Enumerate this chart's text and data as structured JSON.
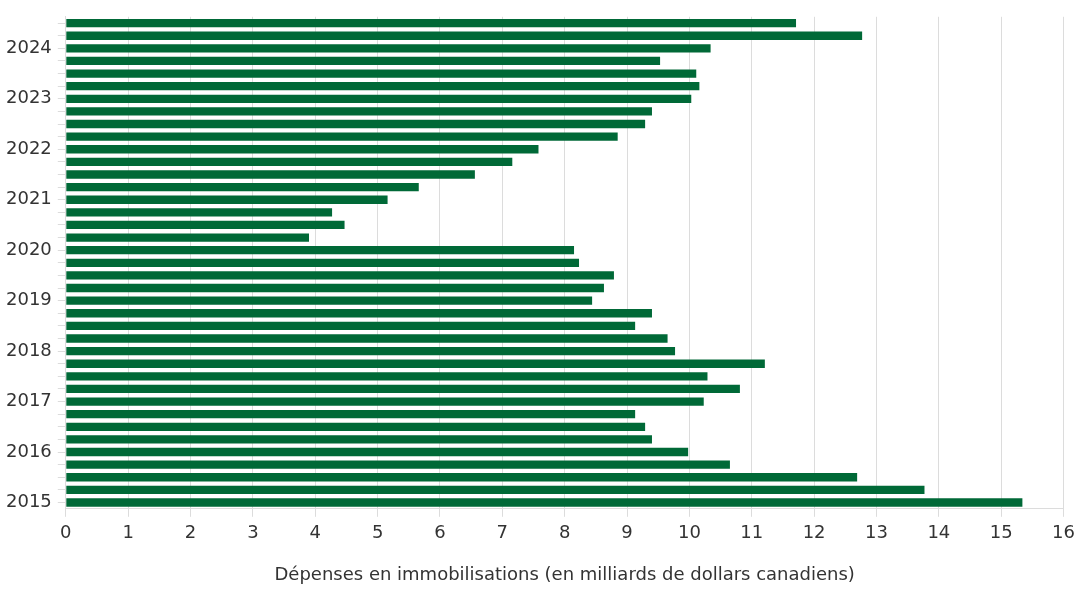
{
  "chart_data": {
    "type": "bar",
    "orientation": "horizontal",
    "xlabel": "Dépenses en immobilisations (en milliards de dollars canadiens)",
    "categories": [
      null,
      null,
      "2024",
      null,
      null,
      null,
      "2023",
      null,
      null,
      null,
      "2022",
      null,
      null,
      null,
      "2021",
      null,
      null,
      null,
      "2020",
      null,
      null,
      null,
      "2019",
      null,
      null,
      null,
      "2018",
      null,
      null,
      null,
      "2017",
      null,
      null,
      null,
      "2016",
      null,
      null,
      null,
      "2015"
    ],
    "values": [
      11.71,
      12.77,
      10.34,
      9.53,
      10.11,
      10.16,
      10.03,
      9.4,
      9.29,
      8.85,
      7.58,
      7.16,
      6.56,
      5.66,
      5.16,
      4.27,
      4.47,
      3.9,
      8.15,
      8.23,
      8.79,
      8.63,
      8.44,
      9.4,
      9.13,
      9.65,
      9.77,
      11.21,
      10.29,
      10.81,
      10.23,
      9.13,
      9.29,
      9.4,
      9.98,
      10.65,
      12.69,
      13.77,
      15.34
    ],
    "color": "#006937",
    "xlim": [
      0,
      16
    ],
    "xticks": [
      0,
      1,
      2,
      3,
      4,
      5,
      6,
      7,
      8,
      9,
      10,
      11,
      12,
      13,
      14,
      15,
      16
    ],
    "grid": "x",
    "legend": false
  }
}
